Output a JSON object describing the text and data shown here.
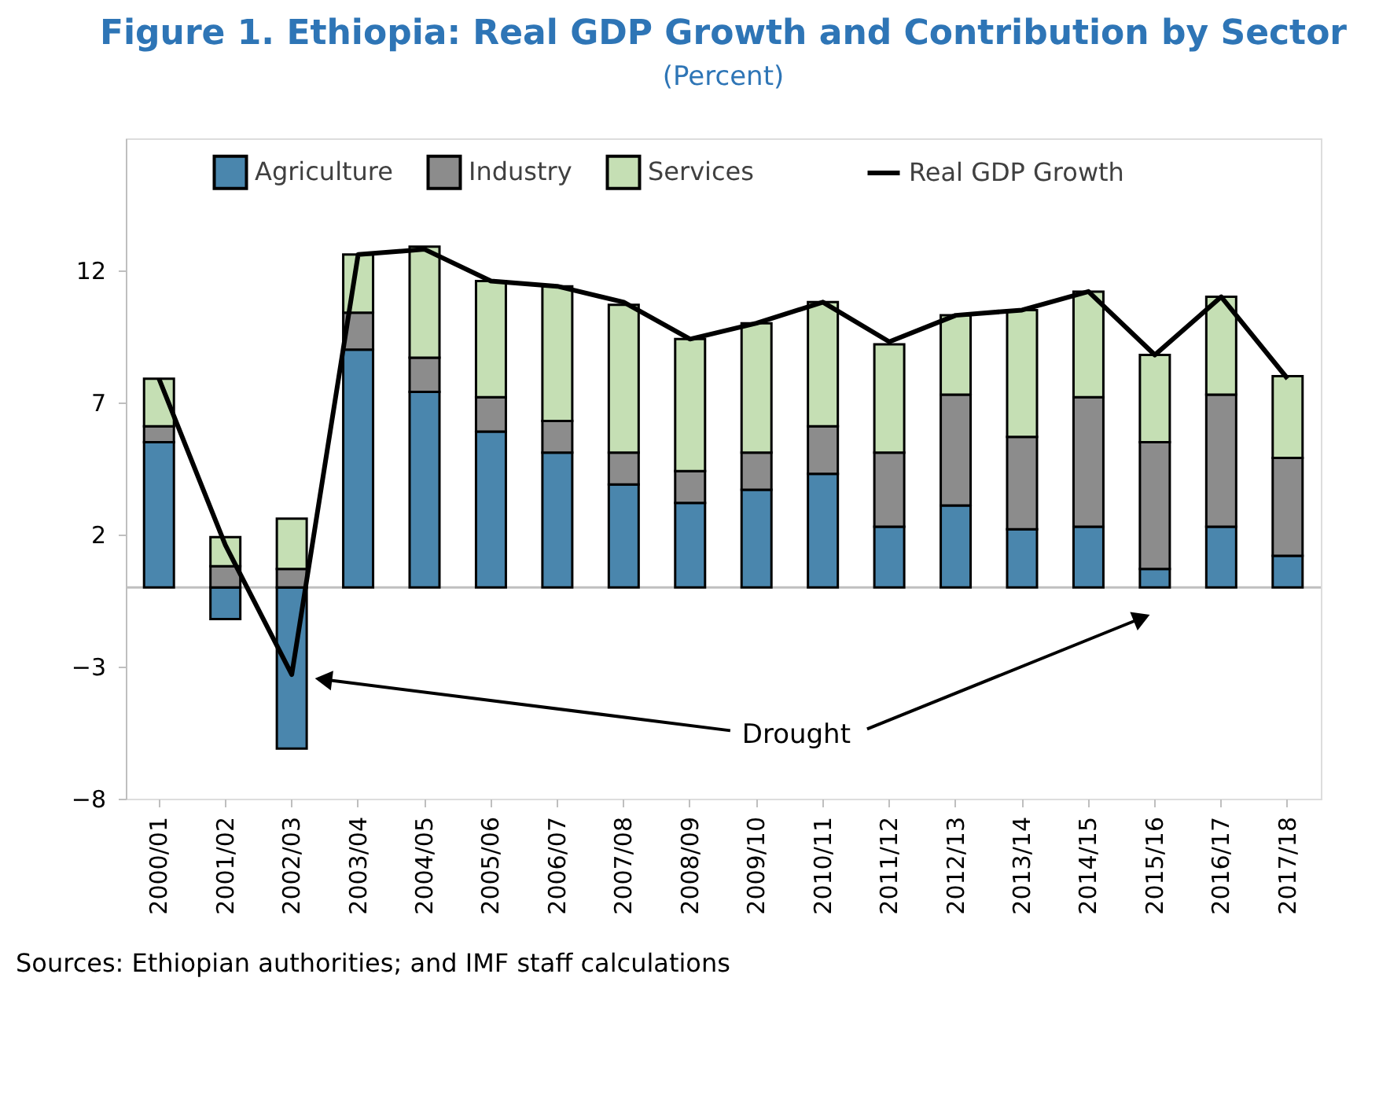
{
  "chart_data": {
    "type": "bar",
    "stacked": true,
    "title": "Figure 1. Ethiopia: Real GDP Growth and Contribution by Sector",
    "subtitle": "(Percent)",
    "categories": [
      "2000/01",
      "2001/02",
      "2002/03",
      "2003/04",
      "2004/05",
      "2005/06",
      "2006/07",
      "2007/08",
      "2008/09",
      "2009/10",
      "2010/11",
      "2011/12",
      "2012/13",
      "2013/14",
      "2014/15",
      "2015/16",
      "2016/17",
      "2017/18"
    ],
    "series": [
      {
        "name": "Agriculture",
        "color": "#4a86ad",
        "values": [
          5.5,
          -1.2,
          -6.1,
          9.0,
          7.4,
          5.9,
          5.1,
          3.9,
          3.2,
          3.7,
          4.3,
          2.3,
          3.1,
          2.2,
          2.3,
          0.7,
          2.3,
          1.2
        ]
      },
      {
        "name": "Industry",
        "color": "#8c8c8c",
        "values": [
          0.6,
          0.8,
          0.7,
          1.4,
          1.3,
          1.3,
          1.2,
          1.2,
          1.2,
          1.4,
          1.8,
          2.8,
          4.2,
          3.5,
          4.9,
          4.8,
          5.0,
          3.7
        ]
      },
      {
        "name": "Services",
        "color": "#c5dfb4",
        "values": [
          1.8,
          1.1,
          1.9,
          2.2,
          4.2,
          4.4,
          5.1,
          5.6,
          5.0,
          4.9,
          4.7,
          4.1,
          3.0,
          4.8,
          4.0,
          3.3,
          3.7,
          3.1
        ]
      },
      {
        "name": "Real GDP Growth",
        "type": "line",
        "color": "#000000",
        "values": [
          7.9,
          1.6,
          -3.3,
          12.6,
          12.8,
          11.6,
          11.4,
          10.8,
          9.4,
          10.0,
          10.8,
          9.3,
          10.3,
          10.5,
          11.2,
          8.8,
          11.0,
          7.9
        ]
      }
    ],
    "ylim": [
      -8,
      17
    ],
    "yticks": [
      -8,
      -3,
      2,
      7,
      12
    ],
    "grid": false,
    "legend": "top",
    "annotations": [
      "Drought",
      "Sources: Ethiopian authorities; and IMF staff calculations"
    ]
  }
}
